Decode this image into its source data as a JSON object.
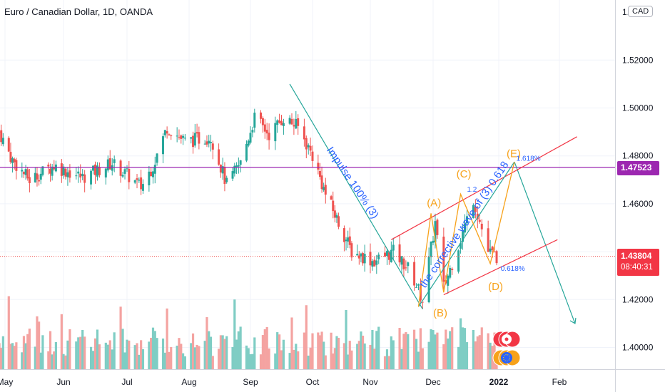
{
  "header": {
    "title": "Euro / Canadian Dollar, 1D, OANDA",
    "currency": "CAD"
  },
  "price_tags": {
    "level": "1.47523",
    "last": "1.43804",
    "countdown": "08:40:31"
  },
  "colors": {
    "bull": "#26a69a",
    "bear": "#ef5350",
    "vol_bull": "#7fcdc4",
    "vol_bear": "#f4a3a1",
    "impulse_line": "#26a69a",
    "channel": "#f23645",
    "waves": "#f7a21b",
    "level_line": "#9c27b0",
    "fib_text": "#2962ff",
    "label_text": "#2962ff",
    "wave_label": "#f7a21b",
    "axis_text": "#131722"
  },
  "chart_data": {
    "type": "candlestick",
    "x_ticks": [
      {
        "label": "May",
        "date": "2021-05-01"
      },
      {
        "label": "Jun",
        "date": "2021-06-01"
      },
      {
        "label": "Jul",
        "date": "2021-07-01"
      },
      {
        "label": "Aug",
        "date": "2021-08-01"
      },
      {
        "label": "Sep",
        "date": "2021-09-01"
      },
      {
        "label": "Oct",
        "date": "2021-10-01"
      },
      {
        "label": "Nov",
        "date": "2021-11-01"
      },
      {
        "label": "Dec",
        "date": "2021-12-01"
      },
      {
        "label": "2022",
        "date": "2022-01-01"
      },
      {
        "label": "Feb",
        "date": "2022-02-01"
      }
    ],
    "y_ticks": [
      "1.52000",
      "1.50000",
      "1.48000",
      "1.46000",
      "1.42000",
      "1.40000"
    ],
    "y_top_tick": "1.5",
    "ylim": [
      1.3895,
      1.5495
    ],
    "price_keypoints": [
      [
        "2021-04-28",
        1.49
      ],
      [
        "2021-05-05",
        1.478
      ],
      [
        "2021-05-14",
        1.47
      ],
      [
        "2021-05-27",
        1.476
      ],
      [
        "2021-06-10",
        1.471
      ],
      [
        "2021-06-24",
        1.477
      ],
      [
        "2021-07-08",
        1.467
      ],
      [
        "2021-07-14",
        1.476
      ],
      [
        "2021-07-21",
        1.492
      ],
      [
        "2021-07-30",
        1.486
      ],
      [
        "2021-08-12",
        1.488
      ],
      [
        "2021-08-20",
        1.468
      ],
      [
        "2021-08-27",
        1.477
      ],
      [
        "2021-09-03",
        1.496
      ],
      [
        "2021-09-10",
        1.489
      ],
      [
        "2021-09-17",
        1.496
      ],
      [
        "2021-09-24",
        1.492
      ],
      [
        "2021-10-01",
        1.48
      ],
      [
        "2021-10-08",
        1.464
      ],
      [
        "2021-10-15",
        1.452
      ],
      [
        "2021-10-22",
        1.44
      ],
      [
        "2021-11-03",
        1.436
      ],
      [
        "2021-11-12",
        1.44
      ],
      [
        "2021-11-20",
        1.432
      ],
      [
        "2021-11-26",
        1.42
      ],
      [
        "2021-12-02",
        1.452
      ],
      [
        "2021-12-06",
        1.425
      ],
      [
        "2021-12-15",
        1.448
      ],
      [
        "2021-12-20",
        1.462
      ],
      [
        "2021-12-27",
        1.44
      ],
      [
        "2021-12-31",
        1.438
      ]
    ],
    "annotations": [
      {
        "text": "Impulse 100% (3)",
        "kind": "label"
      },
      {
        "text": "the corrective wave of (3) 0.618",
        "kind": "label"
      },
      {
        "text": "(A)",
        "kind": "wave"
      },
      {
        "text": "(B)",
        "kind": "wave"
      },
      {
        "text": "(C)",
        "kind": "wave"
      },
      {
        "text": "(D)",
        "kind": "wave"
      },
      {
        "text": "(E)",
        "kind": "wave"
      },
      {
        "text": "1.618%",
        "kind": "fib"
      },
      {
        "text": "0.618%",
        "kind": "fib"
      },
      {
        "text": "1.2",
        "kind": "fib"
      }
    ],
    "horizontal_level": 1.47523,
    "last_price": 1.43804,
    "impulse_line": [
      [
        "2021-09-20",
        1.51
      ],
      [
        "2021-11-26",
        1.416
      ]
    ],
    "projection": [
      [
        "2022-01-09",
        1.4775
      ],
      [
        "2022-02-09",
        1.41
      ]
    ],
    "channel_upper": [
      [
        "2021-11-11",
        1.445
      ],
      [
        "2022-02-10",
        1.488
      ]
    ],
    "channel_lower": [
      [
        "2021-12-06",
        1.422
      ],
      [
        "2022-01-31",
        1.445
      ]
    ],
    "corrective_line": [
      [
        "2021-11-24",
        1.417
      ],
      [
        "2022-01-09",
        1.4775
      ]
    ],
    "waves_path": [
      [
        "2021-11-24",
        1.417
      ],
      [
        "2021-11-30",
        1.456
      ],
      [
        "2021-12-06",
        1.423
      ],
      [
        "2021-12-14",
        1.464
      ],
      [
        "2021-12-28",
        1.435
      ],
      [
        "2022-01-09",
        1.4775
      ],
      [
        "2022-01-09",
        1.4775
      ]
    ],
    "grid": true,
    "legend": "none"
  }
}
